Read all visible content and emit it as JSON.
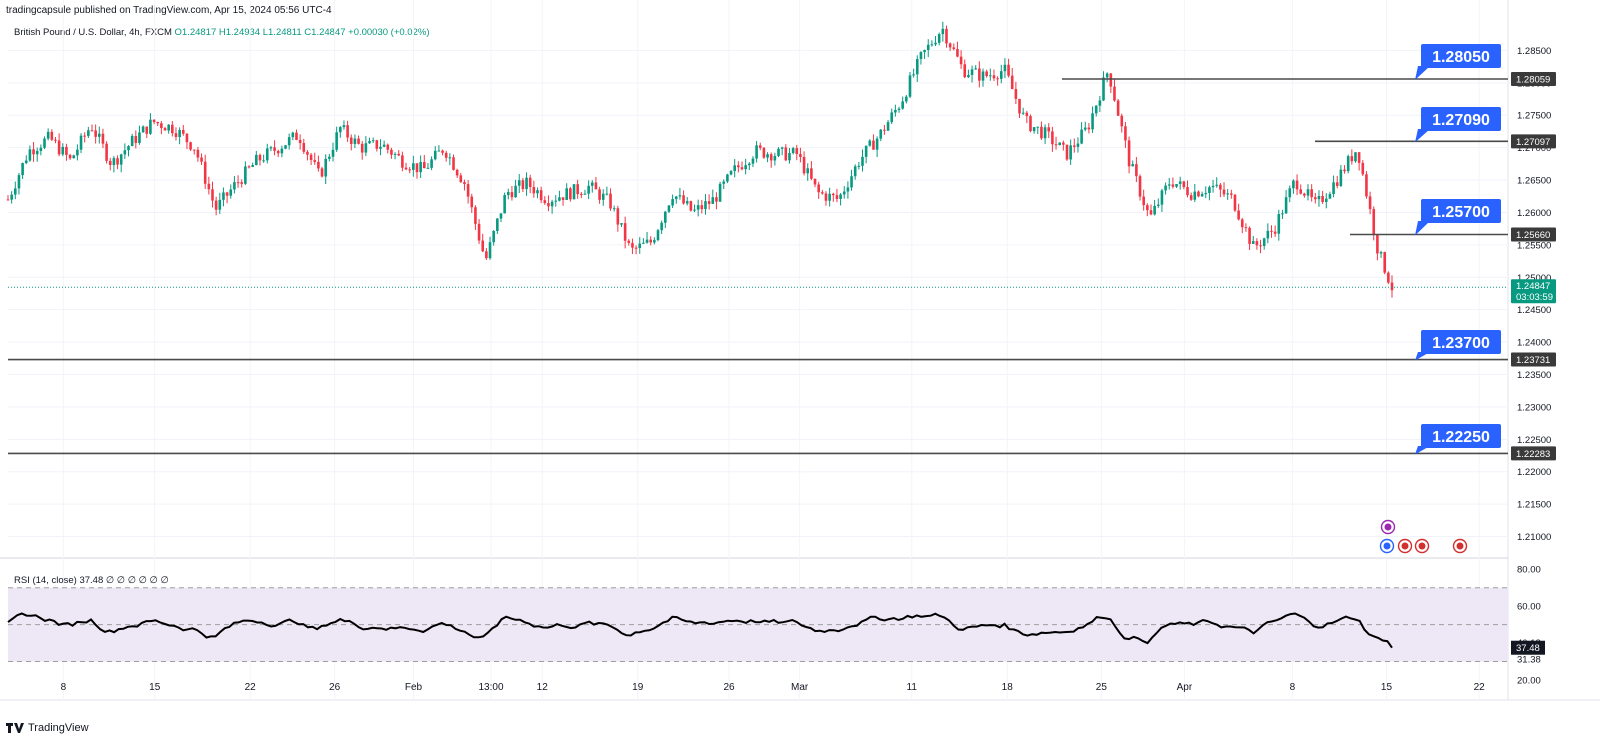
{
  "header": {
    "published": "tradingcapsule published on TradingView.com, Apr 15, 2024 05:56 UTC-4"
  },
  "legend": {
    "symbol": "British Pound / U.S. Dollar, 4h, FXCM",
    "open": "O1.24817",
    "high": "H1.24934",
    "low": "L1.24811",
    "close": "C1.24847",
    "change": "+0.00030 (+0.02%)"
  },
  "rsi_legend": "RSI (14, close) 37.48 ∅ ∅ ∅ ∅ ∅ ∅",
  "footer": {
    "brand": "TradingView",
    "logo": "tradingview-logo-icon"
  },
  "colors": {
    "up": "#089981",
    "down": "#f23645",
    "level_line": "#4a4a4a",
    "callout": "#2962ff",
    "rsi_line": "#000000",
    "rsi_band": "#ede7f6",
    "last_price": "#089981"
  },
  "price_axis": {
    "ticks": [
      "1.28500",
      "1.28000",
      "1.27500",
      "1.27000",
      "1.26500",
      "1.26000",
      "1.25500",
      "1.25000",
      "1.24500",
      "1.24000",
      "1.23500",
      "1.23000",
      "1.22500",
      "1.22000",
      "1.21500",
      "1.21000"
    ],
    "level_labels": [
      "1.28059",
      "1.27097",
      "1.25660",
      "1.23731",
      "1.22283"
    ],
    "last_price": "1.24847",
    "countdown": "03:03:59"
  },
  "callouts": [
    "1.28050",
    "1.27090",
    "1.25700",
    "1.23700",
    "1.22250"
  ],
  "time_axis": [
    "8",
    "15",
    "22",
    "26",
    "Feb",
    "13:00",
    "12",
    "19",
    "26",
    "Mar",
    "11",
    "18",
    "25",
    "Apr",
    "8",
    "15",
    "22"
  ],
  "rsi_axis": {
    "ticks": [
      "80.00",
      "60.00",
      "40.18",
      "31.38",
      "20.00"
    ],
    "current": "37.48"
  },
  "chart_data": {
    "type": "candlestick",
    "instrument": "British Pound / U.S. Dollar",
    "timeframe": "4h",
    "levels": [
      1.28059,
      1.27097,
      1.2566,
      1.23731,
      1.22283
    ],
    "callout_values": [
      1.2805,
      1.2709,
      1.257,
      1.237,
      1.2225
    ],
    "last_close": 1.24847,
    "ylim": [
      1.207,
      1.29
    ],
    "rsi": {
      "period": 14,
      "value": 37.48,
      "upper": 70,
      "middle": 50,
      "lower": 30,
      "ylim": [
        20,
        85
      ]
    },
    "series": [
      {
        "name": "price_path",
        "x": [
          0,
          1.5,
          3,
          4.5,
          6,
          7.5,
          9,
          10.5,
          12,
          13.5,
          15,
          16.5,
          18,
          19.5,
          21,
          22.5,
          24,
          25.5,
          27,
          28.5,
          30,
          31.5,
          33,
          34.5,
          36,
          37.5,
          39,
          40.5,
          42,
          43.5,
          45,
          46.5,
          48,
          49.5,
          51,
          52.5,
          54,
          55.5,
          57,
          58.5,
          60,
          61.5,
          63,
          64.5,
          66,
          67.5,
          69,
          70.5,
          72,
          73.5,
          75,
          76.5,
          78,
          79.5,
          81,
          82.5,
          84,
          85.5,
          87,
          88.5,
          90,
          91.5,
          93,
          94.5,
          96,
          97.5,
          99,
          100
        ],
        "values": [
          1.262,
          1.2695,
          1.2715,
          1.268,
          1.2735,
          1.2675,
          1.271,
          1.274,
          1.273,
          1.27,
          1.2605,
          1.2645,
          1.268,
          1.27,
          1.272,
          1.2655,
          1.273,
          1.27,
          1.2705,
          1.268,
          1.2665,
          1.27,
          1.2645,
          1.2525,
          1.263,
          1.2645,
          1.262,
          1.263,
          1.264,
          1.2615,
          1.254,
          1.2555,
          1.263,
          1.26,
          1.262,
          1.2665,
          1.2695,
          1.269,
          1.269,
          1.263,
          1.262,
          1.268,
          1.272,
          1.277,
          1.284,
          1.2885,
          1.282,
          1.281,
          1.282,
          1.274,
          1.272,
          1.269,
          1.273,
          1.282,
          1.268,
          1.259,
          1.265,
          1.263,
          1.264,
          1.262,
          1.2545,
          1.2575,
          1.265,
          1.261,
          1.265,
          1.27,
          1.254,
          1.2485
        ]
      }
    ]
  }
}
